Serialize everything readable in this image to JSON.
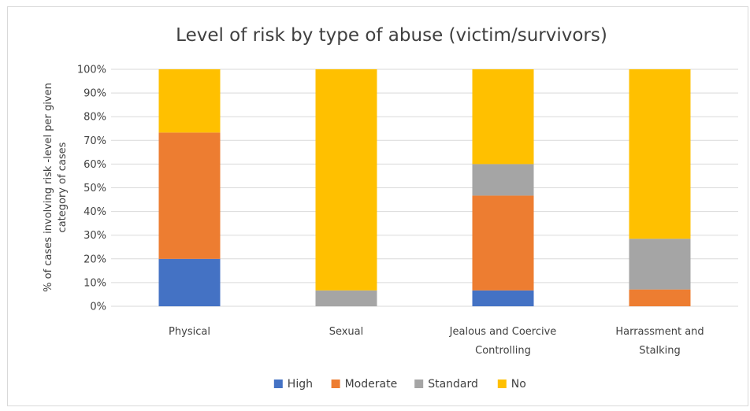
{
  "chart_data": {
    "type": "bar",
    "stacked": true,
    "title": "Level of risk by type of abuse (victim/survivors)",
    "ylabel": [
      "% of cases involving risk -level per given",
      "category of cases"
    ],
    "xlabel": "",
    "ylim": [
      0,
      100
    ],
    "yticks": [
      "0%",
      "10%",
      "20%",
      "30%",
      "40%",
      "50%",
      "60%",
      "70%",
      "80%",
      "90%",
      "100%"
    ],
    "categories": [
      [
        "Physical"
      ],
      [
        "Sexual"
      ],
      [
        "Jealous and Coercive",
        "Controlling"
      ],
      [
        "Harrassment and",
        "Stalking"
      ]
    ],
    "series": [
      {
        "name": "High",
        "color": "#4472C4",
        "values": [
          20,
          0,
          6.7,
          0
        ]
      },
      {
        "name": "Moderate",
        "color": "#ED7D31",
        "values": [
          53.3,
          0,
          40,
          7.1
        ]
      },
      {
        "name": "Standard",
        "color": "#A5A5A5",
        "values": [
          0,
          6.7,
          13.3,
          21.4
        ]
      },
      {
        "name": "No",
        "color": "#FFC000",
        "values": [
          26.7,
          93.3,
          40,
          71.5
        ]
      }
    ],
    "grid": true,
    "legend_position": "bottom"
  }
}
